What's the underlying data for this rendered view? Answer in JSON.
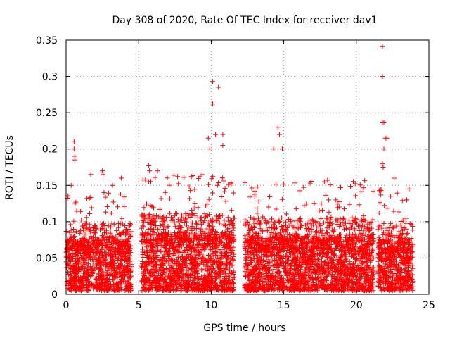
{
  "chart_data": {
    "type": "scatter",
    "title": "Day 308 of 2020, Rate Of TEC Index for receiver dav1",
    "xlabel": "GPS time / hours",
    "ylabel": "ROTI / TECUs",
    "xlim": [
      0,
      25
    ],
    "ylim": [
      0,
      0.35
    ],
    "xticks": [
      0,
      5,
      10,
      15,
      20,
      25
    ],
    "xtick_labels": [
      "0",
      "5",
      "10",
      "15",
      "20",
      "25"
    ],
    "yticks": [
      0,
      0.05,
      0.1,
      0.15,
      0.2,
      0.25,
      0.3,
      0.35
    ],
    "ytick_labels": [
      "0",
      "0.05",
      "0.1",
      "0.15",
      "0.2",
      "0.25",
      "0.3",
      "0.35"
    ],
    "grid": true,
    "marker": "+",
    "color": "#ff0000",
    "series": [
      {
        "name": "ROTI",
        "segments": [
          {
            "x_range": [
              0.0,
              4.5
            ],
            "typical_max": 0.07
          },
          {
            "x_range": [
              5.2,
              11.6
            ],
            "typical_max": 0.08
          },
          {
            "x_range": [
              12.3,
              21.2
            ],
            "typical_max": 0.075
          },
          {
            "x_range": [
              21.5,
              23.9
            ],
            "typical_max": 0.07
          }
        ],
        "notable_points": [
          {
            "x": 0.55,
            "y": 0.21
          },
          {
            "x": 0.55,
            "y": 0.2
          },
          {
            "x": 0.6,
            "y": 0.19
          },
          {
            "x": 0.6,
            "y": 0.185
          },
          {
            "x": 0.35,
            "y": 0.15
          },
          {
            "x": 1.7,
            "y": 0.165
          },
          {
            "x": 2.5,
            "y": 0.17
          },
          {
            "x": 2.55,
            "y": 0.165
          },
          {
            "x": 3.2,
            "y": 0.15
          },
          {
            "x": 3.8,
            "y": 0.16
          },
          {
            "x": 5.7,
            "y": 0.177
          },
          {
            "x": 5.75,
            "y": 0.17
          },
          {
            "x": 5.7,
            "y": 0.155
          },
          {
            "x": 6.3,
            "y": 0.17
          },
          {
            "x": 9.8,
            "y": 0.215
          },
          {
            "x": 9.9,
            "y": 0.2
          },
          {
            "x": 10.1,
            "y": 0.293
          },
          {
            "x": 10.1,
            "y": 0.262
          },
          {
            "x": 10.5,
            "y": 0.285
          },
          {
            "x": 10.3,
            "y": 0.22
          },
          {
            "x": 10.8,
            "y": 0.22
          },
          {
            "x": 10.8,
            "y": 0.205
          },
          {
            "x": 14.6,
            "y": 0.23
          },
          {
            "x": 14.7,
            "y": 0.22
          },
          {
            "x": 14.3,
            "y": 0.2
          },
          {
            "x": 14.9,
            "y": 0.2
          },
          {
            "x": 17.8,
            "y": 0.155
          },
          {
            "x": 18.9,
            "y": 0.147
          },
          {
            "x": 21.8,
            "y": 0.341
          },
          {
            "x": 21.8,
            "y": 0.3
          },
          {
            "x": 21.8,
            "y": 0.237
          },
          {
            "x": 21.9,
            "y": 0.237
          },
          {
            "x": 22.0,
            "y": 0.215
          },
          {
            "x": 22.1,
            "y": 0.215
          },
          {
            "x": 21.9,
            "y": 0.2
          },
          {
            "x": 21.8,
            "y": 0.18
          },
          {
            "x": 21.85,
            "y": 0.175
          },
          {
            "x": 22.6,
            "y": 0.16
          },
          {
            "x": 21.7,
            "y": 0.143
          }
        ]
      }
    ]
  }
}
